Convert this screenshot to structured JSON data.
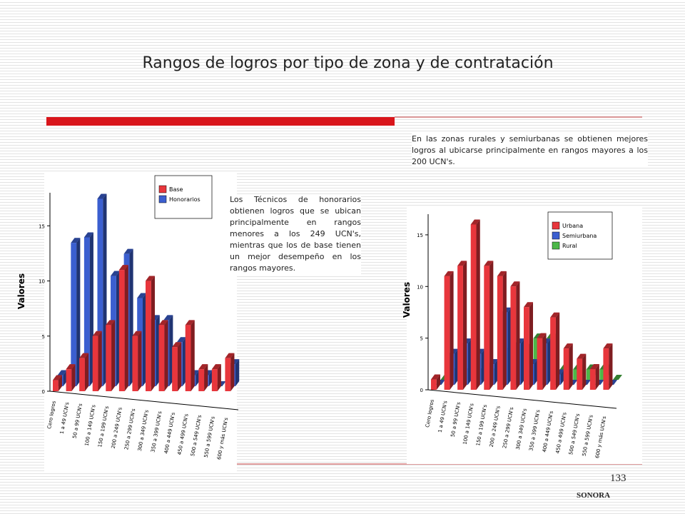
{
  "title": "Rangos de logros por tipo de zona y de contratación",
  "note_left": "Los Técnicos de honorarios obtienen logros que se ubican principalmente en rangos menores a los 249 UCN's, mientras que los de base tienen un mejor desempeño en los rangos mayores.",
  "note_right": "En las zonas rurales y semiurbanas se obtienen mejores logros al ubicarse principalmente en rangos mayores a los 200 UCN's.",
  "page_number": "133",
  "footer": "SONORA",
  "chart_data": [
    {
      "type": "bar3d",
      "ylabel": "Valores",
      "categories": [
        "Cero logros",
        "1 a 49 UCN's",
        "50 a 99 UCN's",
        "100 a 149 UCN's",
        "150 a 199 UCN's",
        "200 a 249 UCN's",
        "250 a 299 UCN's",
        "300 a 349 UCN's",
        "350 a 399 UCN's",
        "400 a 449 UCN's",
        "450 a 499 UCN's",
        "500 a 549 UCN's",
        "550 a 599 UCN's",
        "600 y más UCN's"
      ],
      "series": [
        {
          "name": "Base",
          "color": "#e8363c",
          "values": [
            1,
            2,
            3,
            5,
            6,
            11,
            5,
            10,
            6,
            4,
            6,
            2,
            2,
            3
          ]
        },
        {
          "name": "Honorarios",
          "color": "#3b5fd0",
          "values": [
            1,
            13,
            13.5,
            17,
            10,
            12,
            8,
            6,
            6,
            4,
            1,
            1,
            0,
            2
          ]
        }
      ],
      "ylim": [
        0,
        18
      ],
      "yticks": [
        0,
        5,
        10,
        15
      ]
    },
    {
      "type": "bar3d",
      "ylabel": "Valores",
      "categories": [
        "Cero logros",
        "1 a 49 UCN's",
        "50 a 99 UCN's",
        "100 a 149 UCN's",
        "150 a 199 UCN's",
        "200 a 249 UCN's",
        "250 a 299 UCN's",
        "300 a 349 UCN's",
        "350 a 399 UCN's",
        "400 a 449 UCN's",
        "450 a 499 UCN's",
        "500 a 549 UCN's",
        "550 a 599 UCN's",
        "600 y más UCN's"
      ],
      "series": [
        {
          "name": "Urbana",
          "color": "#e8363c",
          "values": [
            1,
            11,
            12,
            16,
            12,
            11,
            10,
            8,
            5,
            7,
            4,
            3,
            2,
            4
          ]
        },
        {
          "name": "Semiurbana",
          "color": "#3b5fd0",
          "values": [
            0,
            3,
            4,
            3,
            2,
            7,
            4,
            2,
            4,
            1,
            0,
            0,
            0,
            0
          ]
        },
        {
          "name": "Rural",
          "color": "#4cb848",
          "values": [
            0,
            1,
            1,
            1,
            1,
            3,
            3,
            4,
            4,
            1,
            1,
            1,
            1,
            0
          ]
        }
      ],
      "ylim": [
        0,
        17
      ],
      "yticks": [
        0,
        5,
        10,
        15
      ]
    }
  ]
}
